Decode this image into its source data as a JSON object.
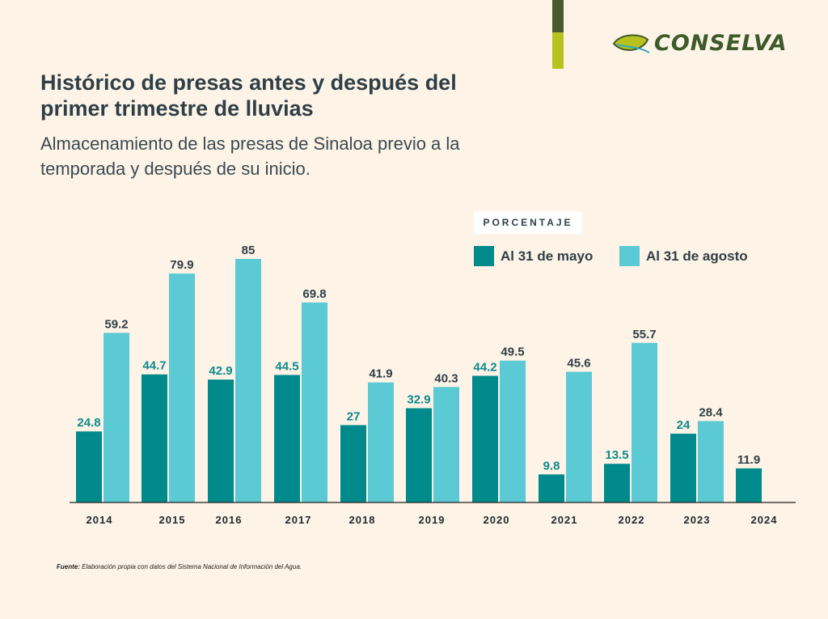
{
  "brand": {
    "name": "CONSELVA",
    "accent_dark": "#4a5a2c",
    "accent_light": "#b8c21f"
  },
  "title": "Histórico de presas antes y después del primer trimestre de lluvias",
  "subtitle": "Almacenamiento de las presas de Sinaloa previo a la temporada y después de su inicio.",
  "source_label": "Fuente:",
  "source_text": "Elaboración propia con datos del Sistema Nacional de Información del Agua.",
  "chart_data": {
    "type": "bar",
    "unit_label": "PORCENTAJE",
    "categories": [
      "2014",
      "2015",
      "2016",
      "2017",
      "2018",
      "2019",
      "2020",
      "2021",
      "2022",
      "2023",
      "2024"
    ],
    "series": [
      {
        "name": "Al 31 de mayo",
        "color": "#008a8c",
        "values": [
          24.8,
          44.7,
          42.9,
          44.5,
          27,
          32.9,
          44.2,
          9.8,
          13.5,
          24,
          11.9
        ]
      },
      {
        "name": "Al 31 de agosto",
        "color": "#5ccad4",
        "values": [
          59.2,
          79.9,
          85,
          69.8,
          41.9,
          40.3,
          49.5,
          45.6,
          55.7,
          28.4,
          null
        ]
      }
    ],
    "ylim": [
      0,
      85
    ],
    "grid": false,
    "legend": "top-right",
    "data_labels": true
  }
}
